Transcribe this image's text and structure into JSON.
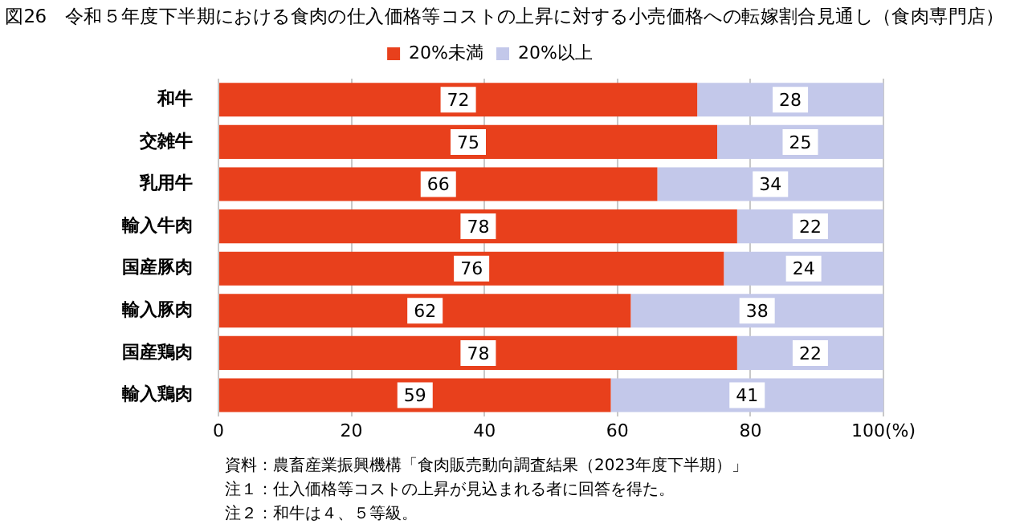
{
  "chart_data": {
    "type": "bar",
    "orientation": "horizontal",
    "stacked": true,
    "title": "図26　令和５年度下半期における食肉の仕入価格等コストの上昇に対する小売価格への転嫁割合見通し（食肉専門店）",
    "categories": [
      "和牛",
      "交雑牛",
      "乳用牛",
      "輸入牛肉",
      "国産豚肉",
      "輸入豚肉",
      "国産鶏肉",
      "輸入鶏肉"
    ],
    "series": [
      {
        "name": "20%未満",
        "color": "#e8401c",
        "values": [
          72,
          75,
          66,
          78,
          76,
          62,
          78,
          59
        ]
      },
      {
        "name": "20%以上",
        "color": "#c3c8ea",
        "values": [
          28,
          25,
          34,
          22,
          24,
          38,
          22,
          41
        ]
      }
    ],
    "xlim": [
      0,
      100
    ],
    "xticks": [
      0,
      20,
      40,
      60,
      80,
      {
        "value": 100,
        "label": "100(%)"
      }
    ],
    "grid": "x",
    "legend": "top",
    "data_labels": true,
    "annotations": [
      "資料：農畜産業振興機構「食肉販売動向調査結果（2023年度下半期）」",
      "注１：仕入価格等コストの上昇が見込まれる者に回答を得た。",
      "注２：和牛は４、５等級。"
    ]
  }
}
